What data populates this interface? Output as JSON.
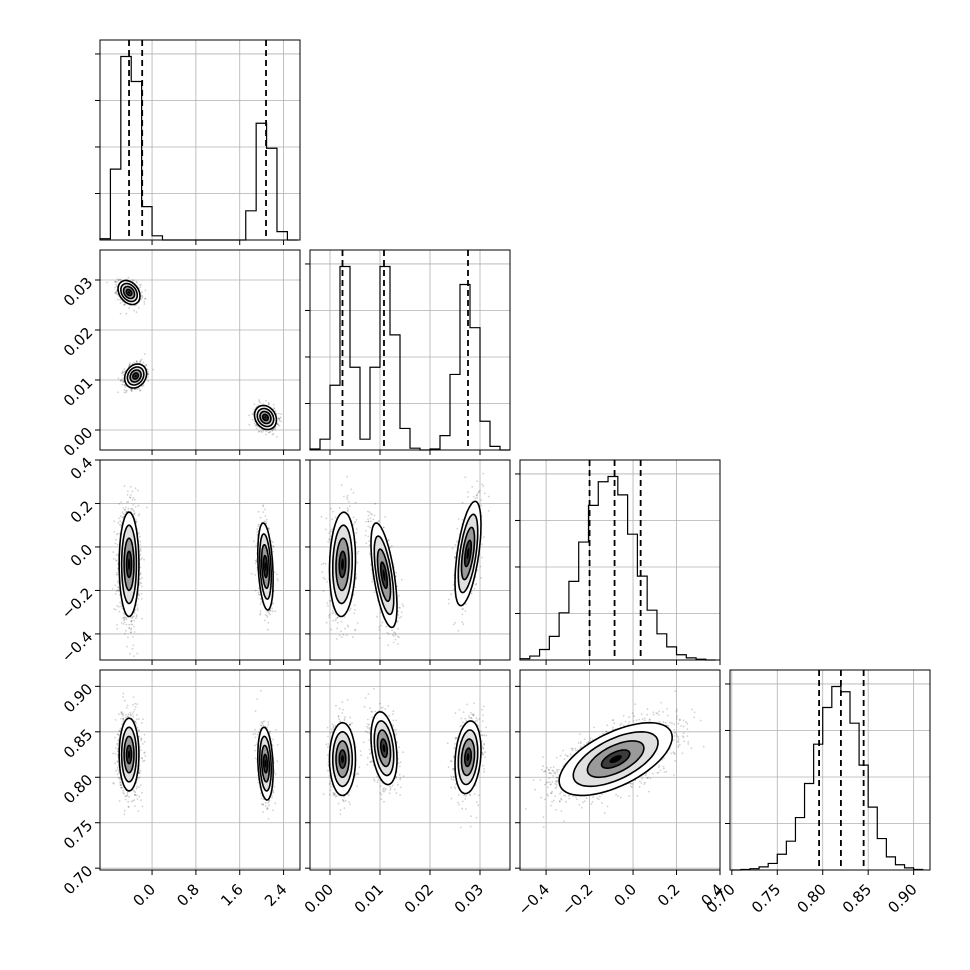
{
  "chart_data": {
    "type": "corner",
    "parameters": [
      {
        "label": "",
        "range": [
          -0.95,
          2.7
        ],
        "ticks": [
          "0.0",
          "0.8",
          "1.6",
          "2.4"
        ],
        "tick_values": [
          0.0,
          0.8,
          1.6,
          2.4
        ]
      },
      {
        "label": "",
        "range": [
          -0.004,
          0.036
        ],
        "ticks": [
          "0.00",
          "0.01",
          "0.02",
          "0.03"
        ],
        "tick_values": [
          0.0,
          0.01,
          0.02,
          0.03
        ]
      },
      {
        "label": "",
        "range": [
          -0.52,
          0.4
        ],
        "ticks": [
          "−0.4",
          "−0.2",
          "0.0",
          "0.2",
          "0.4"
        ],
        "tick_values": [
          -0.4,
          -0.2,
          0.0,
          0.2,
          0.4
        ]
      },
      {
        "label": "",
        "range": [
          0.698,
          0.918
        ],
        "ticks": [
          "0.70",
          "0.75",
          "0.80",
          "0.85",
          "0.90"
        ],
        "tick_values": [
          0.7,
          0.75,
          0.8,
          0.85,
          0.9
        ]
      }
    ],
    "histograms": [
      {
        "param": 0,
        "bin_edges": [
          -0.95,
          -0.76,
          -0.57,
          -0.38,
          -0.19,
          0.0,
          0.19,
          0.38,
          0.57,
          0.76,
          0.95,
          1.14,
          1.33,
          1.52,
          1.71,
          1.9,
          2.09,
          2.28,
          2.47,
          2.66
        ],
        "counts": [
          3,
          170,
          440,
          380,
          80,
          10,
          0,
          0,
          0,
          0,
          0,
          0,
          0,
          0,
          70,
          280,
          220,
          20,
          0
        ],
        "quantiles": [
          -0.42,
          -0.18,
          2.08
        ]
      },
      {
        "param": 1,
        "bin_edges": [
          -0.004,
          -0.002,
          0.0,
          0.002,
          0.004,
          0.006,
          0.008,
          0.01,
          0.012,
          0.014,
          0.016,
          0.018,
          0.02,
          0.022,
          0.024,
          0.026,
          0.028,
          0.03,
          0.032,
          0.034,
          0.036
        ],
        "counts": [
          3,
          30,
          180,
          510,
          230,
          30,
          230,
          510,
          320,
          60,
          5,
          0,
          3,
          40,
          210,
          460,
          340,
          80,
          10,
          0
        ],
        "quantiles": [
          0.0025,
          0.0108,
          0.0276
        ]
      },
      {
        "param": 2,
        "bin_edges": [
          -0.52,
          -0.475,
          -0.43,
          -0.385,
          -0.34,
          -0.295,
          -0.25,
          -0.205,
          -0.16,
          -0.115,
          -0.07,
          -0.025,
          0.02,
          0.065,
          0.11,
          0.155,
          0.2,
          0.245,
          0.29,
          0.335,
          0.38
        ],
        "counts": [
          5,
          15,
          40,
          90,
          180,
          300,
          450,
          590,
          680,
          700,
          630,
          480,
          320,
          190,
          100,
          50,
          20,
          8,
          3,
          0
        ],
        "quantiles": [
          -0.2,
          -0.085,
          0.035
        ]
      },
      {
        "param": 3,
        "bin_edges": [
          0.7,
          0.71,
          0.72,
          0.73,
          0.74,
          0.75,
          0.76,
          0.77,
          0.78,
          0.79,
          0.8,
          0.81,
          0.82,
          0.83,
          0.84,
          0.85,
          0.86,
          0.87,
          0.88,
          0.89,
          0.9,
          0.91
        ],
        "counts": [
          0,
          2,
          5,
          12,
          25,
          60,
          110,
          200,
          330,
          480,
          620,
          700,
          680,
          560,
          400,
          240,
          120,
          50,
          20,
          8,
          2
        ],
        "quantiles": [
          0.796,
          0.82,
          0.845
        ]
      }
    ],
    "joint": [
      {
        "row": 1,
        "col": 0,
        "clusters": [
          {
            "mean": [
              -0.42,
              0.0275
            ],
            "sd": [
              0.1,
              0.0012
            ],
            "rho": -0.3,
            "n": 700
          },
          {
            "mean": [
              -0.3,
              0.0108
            ],
            "sd": [
              0.1,
              0.0012
            ],
            "rho": 0.2,
            "n": 700
          },
          {
            "mean": [
              2.07,
              0.0025
            ],
            "sd": [
              0.1,
              0.0012
            ],
            "rho": -0.2,
            "n": 700
          }
        ]
      },
      {
        "row": 2,
        "col": 0,
        "clusters": [
          {
            "mean": [
              -0.42,
              -0.08
            ],
            "sd": [
              0.09,
              0.12
            ],
            "rho": 0.0,
            "n": 1400
          },
          {
            "mean": [
              2.07,
              -0.09
            ],
            "sd": [
              0.07,
              0.1
            ],
            "rho": -0.3,
            "n": 700
          }
        ]
      },
      {
        "row": 2,
        "col": 1,
        "clusters": [
          {
            "mean": [
              0.0025,
              -0.08
            ],
            "sd": [
              0.0013,
              0.12
            ],
            "rho": 0.1,
            "n": 700
          },
          {
            "mean": [
              0.0108,
              -0.13
            ],
            "sd": [
              0.0013,
              0.12
            ],
            "rho": -0.6,
            "n": 700
          },
          {
            "mean": [
              0.0276,
              -0.03
            ],
            "sd": [
              0.0013,
              0.12
            ],
            "rho": 0.55,
            "n": 700
          }
        ]
      },
      {
        "row": 3,
        "col": 0,
        "clusters": [
          {
            "mean": [
              -0.42,
              0.825
            ],
            "sd": [
              0.09,
              0.02
            ],
            "rho": 0.0,
            "n": 1400
          },
          {
            "mean": [
              2.07,
              0.815
            ],
            "sd": [
              0.07,
              0.02
            ],
            "rho": -0.2,
            "n": 700
          }
        ]
      },
      {
        "row": 3,
        "col": 1,
        "clusters": [
          {
            "mean": [
              0.0025,
              0.82
            ],
            "sd": [
              0.0013,
              0.02
            ],
            "rho": 0.0,
            "n": 700
          },
          {
            "mean": [
              0.0108,
              0.832
            ],
            "sd": [
              0.0013,
              0.02
            ],
            "rho": -0.3,
            "n": 700
          },
          {
            "mean": [
              0.0276,
              0.822
            ],
            "sd": [
              0.0013,
              0.02
            ],
            "rho": 0.2,
            "n": 700
          }
        ]
      },
      {
        "row": 3,
        "col": 2,
        "clusters": [
          {
            "mean": [
              -0.08,
              0.82
            ],
            "sd": [
              0.13,
              0.02
            ],
            "rho": 0.6,
            "n": 2100
          }
        ]
      }
    ],
    "grid": true,
    "colors": {
      "points": "#000000",
      "contours": "#000000",
      "density_fill": "#000000"
    }
  }
}
